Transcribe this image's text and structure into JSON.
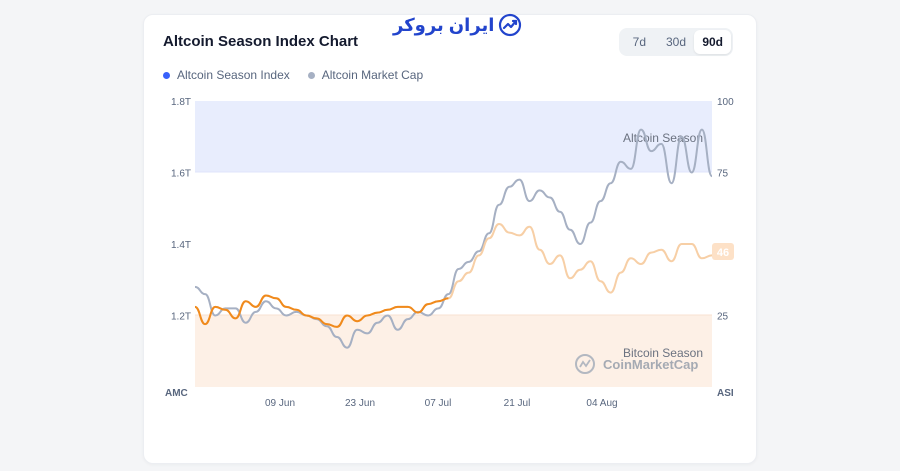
{
  "brand": {
    "watermark": "ایران بروکر"
  },
  "header": {
    "title": "Altcoin Season Index Chart"
  },
  "range": {
    "options": [
      "7d",
      "30d",
      "90d"
    ],
    "selected": "90d"
  },
  "legend": [
    {
      "label": "Altcoin Season Index",
      "color": "#3861fb"
    },
    {
      "label": "Altcoin Market Cap",
      "color": "#a6b0c3"
    }
  ],
  "zones": {
    "altcoin": "Altcoin Season",
    "bitcoin": "Bitcoin Season"
  },
  "watermark_text": "CoinMarketCap",
  "current_badge": "46",
  "chart_data": {
    "type": "line",
    "left_axis": {
      "label": "AMC",
      "ticks": [
        "1.2T",
        "1.4T",
        "1.6T",
        "1.8T"
      ],
      "ylim": [
        1.0,
        1.8
      ]
    },
    "right_axis": {
      "label": "ASI",
      "ticks": [
        "25",
        "75",
        "100"
      ],
      "ylim": [
        0,
        100
      ]
    },
    "x_ticks": [
      "09 Jun",
      "23 Jun",
      "07 Jul",
      "21 Jul",
      "04 Aug"
    ],
    "series": [
      {
        "name": "Altcoin Market Cap",
        "axis": "left",
        "values": [
          1.28,
          1.26,
          1.2,
          1.22,
          1.22,
          1.18,
          1.21,
          1.24,
          1.22,
          1.2,
          1.21,
          1.2,
          1.19,
          1.17,
          1.14,
          1.11,
          1.16,
          1.15,
          1.18,
          1.2,
          1.16,
          1.19,
          1.21,
          1.2,
          1.22,
          1.26,
          1.33,
          1.35,
          1.38,
          1.43,
          1.51,
          1.56,
          1.58,
          1.52,
          1.55,
          1.53,
          1.49,
          1.44,
          1.4,
          1.46,
          1.52,
          1.57,
          1.63,
          1.61,
          1.72,
          1.66,
          1.68,
          1.57,
          1.7,
          1.6,
          1.72,
          1.59
        ]
      },
      {
        "name": "Altcoin Season Index",
        "axis": "right",
        "values": [
          28,
          22,
          28,
          27,
          24,
          30,
          28,
          32,
          31,
          28,
          27,
          25,
          24,
          22,
          21,
          25,
          23,
          25,
          26,
          27,
          28,
          28,
          26,
          29,
          30,
          31,
          37,
          40,
          46,
          52,
          57,
          54,
          53,
          56,
          48,
          43,
          46,
          38,
          41,
          44,
          37,
          33,
          40,
          45,
          43,
          47,
          48,
          44,
          50,
          50,
          45,
          46
        ]
      }
    ],
    "annotations": [
      "Altcoin Season",
      "Bitcoin Season"
    ]
  }
}
